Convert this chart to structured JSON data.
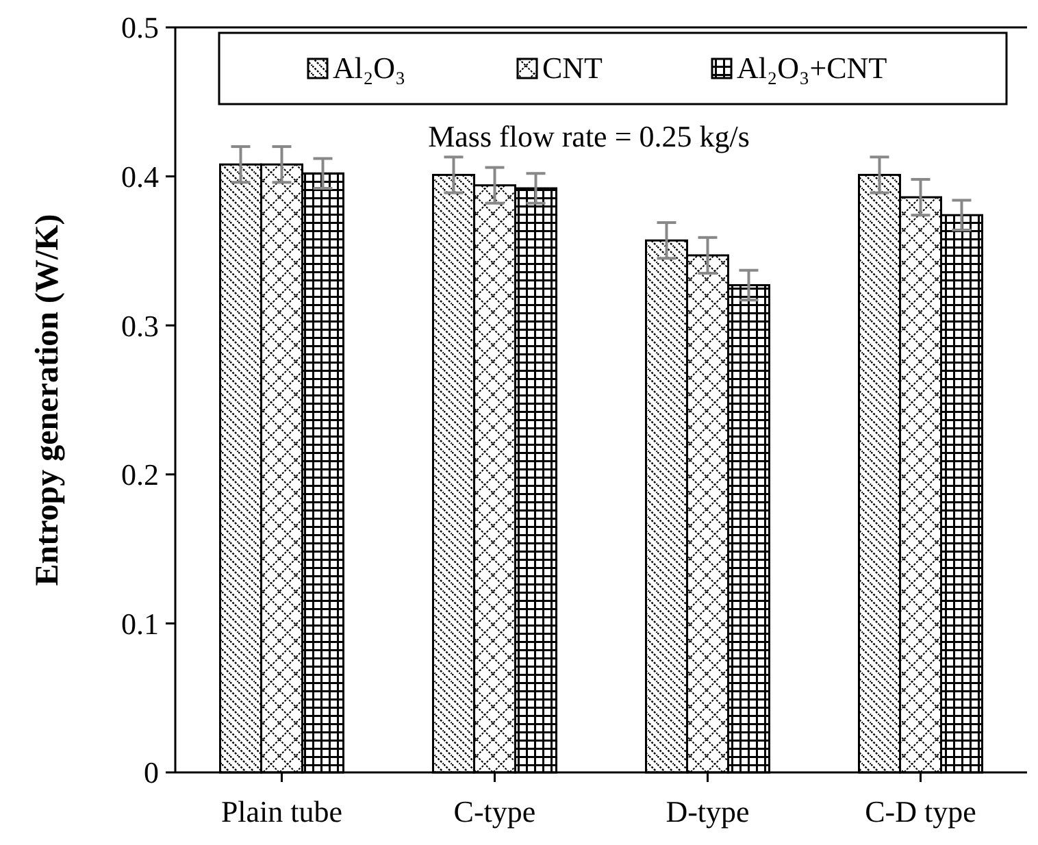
{
  "chart_data": {
    "type": "bar",
    "ylabel": "Entropy generation (W/K)",
    "categories": [
      "Plain tube",
      "C-type",
      "D-type",
      "C-D type"
    ],
    "series": [
      {
        "name": "Al₂O₃",
        "color": "#000000",
        "values": [
          0.408,
          0.401,
          0.357,
          0.401
        ],
        "errors": [
          0.012,
          0.012,
          0.012,
          0.012
        ]
      },
      {
        "name": "CNT",
        "color": "#000000",
        "values": [
          0.408,
          0.394,
          0.347,
          0.386
        ],
        "errors": [
          0.012,
          0.012,
          0.012,
          0.012
        ]
      },
      {
        "name": "Al₂O₃+CNT",
        "color": "#000000",
        "values": [
          0.402,
          0.392,
          0.327,
          0.374
        ],
        "errors": [
          0.01,
          0.01,
          0.01,
          0.01
        ]
      }
    ],
    "ylim": [
      0,
      0.5
    ],
    "yticks": [
      0,
      0.1,
      0.2,
      0.3,
      0.4,
      0.5
    ],
    "legend": "top",
    "grid": false,
    "annotations": [
      "Mass flow rate = 0.25 kg/s"
    ]
  }
}
